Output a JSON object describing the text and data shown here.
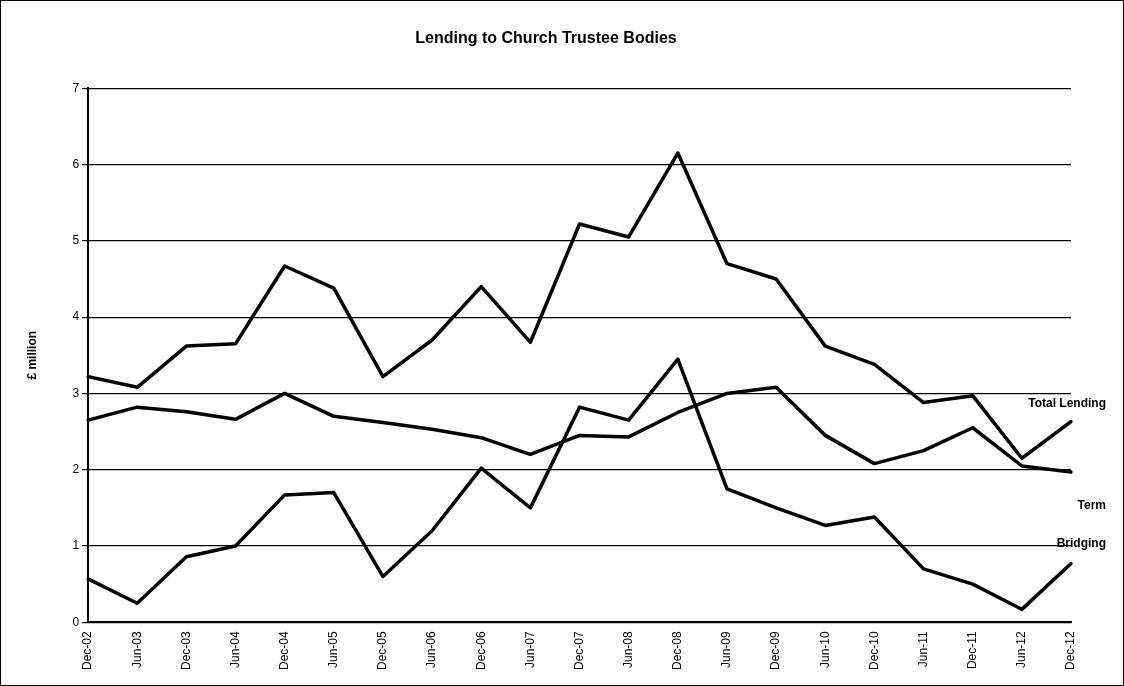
{
  "chart_data": {
    "type": "line",
    "title": "Lending to Church Trustee Bodies",
    "ylabel": "£ million",
    "categories": [
      "Dec-02",
      "Jun-03",
      "Dec-03",
      "Jun-04",
      "Dec-04",
      "Jun-05",
      "Dec-05",
      "Jun-06",
      "Dec-06",
      "Jun-07",
      "Dec-07",
      "Jun-08",
      "Dec-08",
      "Jun-09",
      "Dec-09",
      "Jun-10",
      "Dec-10",
      "Jun-11",
      "Dec-11",
      "Jun-12",
      "Dec-12"
    ],
    "series": [
      {
        "name": "Total Lending",
        "color": "#000000",
        "values": [
          3.22,
          3.08,
          3.62,
          3.65,
          4.67,
          4.38,
          3.22,
          3.7,
          4.4,
          3.67,
          5.22,
          5.05,
          6.15,
          4.7,
          4.5,
          3.62,
          3.38,
          2.88,
          2.97,
          2.15,
          2.63
        ]
      },
      {
        "name": "Term",
        "color": "#000000",
        "values": [
          2.65,
          2.82,
          2.76,
          2.66,
          3.0,
          2.7,
          2.62,
          2.53,
          2.42,
          2.2,
          2.45,
          2.43,
          2.75,
          3.0,
          3.08,
          2.45,
          2.08,
          2.25,
          2.55,
          2.05,
          1.97
        ]
      },
      {
        "name": "Bridging",
        "color": "#000000",
        "values": [
          0.57,
          0.25,
          0.86,
          1.0,
          1.67,
          1.7,
          0.6,
          1.2,
          2.02,
          1.5,
          2.82,
          2.65,
          3.45,
          1.75,
          1.5,
          1.27,
          1.38,
          0.7,
          0.5,
          0.17,
          0.77
        ]
      }
    ],
    "ylim": [
      0,
      7
    ],
    "yticks": [
      0,
      1,
      2,
      3,
      4,
      5,
      6,
      7
    ],
    "grid": "y",
    "legend": false,
    "marker": "none",
    "line_style": "solid"
  }
}
